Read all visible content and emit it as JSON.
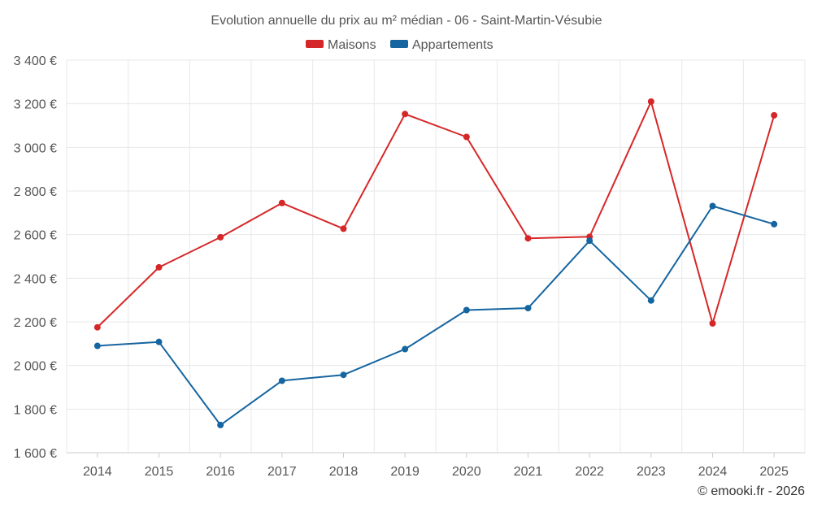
{
  "chart_data": {
    "type": "line",
    "title": "Evolution annuelle du prix au m² médian - 06 - Saint-Martin-Vésubie",
    "categories": [
      "2014",
      "2015",
      "2016",
      "2017",
      "2018",
      "2019",
      "2020",
      "2021",
      "2022",
      "2023",
      "2024",
      "2025"
    ],
    "series": [
      {
        "name": "Maisons",
        "color": "#d62728",
        "values": [
          2175,
          2450,
          2588,
          2745,
          2627,
          3153,
          3048,
          2583,
          2590,
          3210,
          2193,
          3147
        ]
      },
      {
        "name": "Appartements",
        "color": "#1565a0",
        "values": [
          2090,
          2108,
          1727,
          1930,
          1957,
          2075,
          2254,
          2263,
          2572,
          2298,
          2731,
          2648
        ]
      }
    ],
    "ylim": [
      1600,
      3400
    ],
    "yticks": [
      1600,
      1800,
      2000,
      2200,
      2400,
      2600,
      2800,
      3000,
      3200,
      3400
    ],
    "ytick_labels": [
      "1 600 €",
      "1 800 €",
      "2 000 €",
      "2 200 €",
      "2 400 €",
      "2 600 €",
      "2 800 €",
      "3 000 €",
      "3 200 €",
      "3 400 €"
    ],
    "grid": true,
    "legend_position": "top-center",
    "credit": "© emooki.fr - 2026"
  }
}
